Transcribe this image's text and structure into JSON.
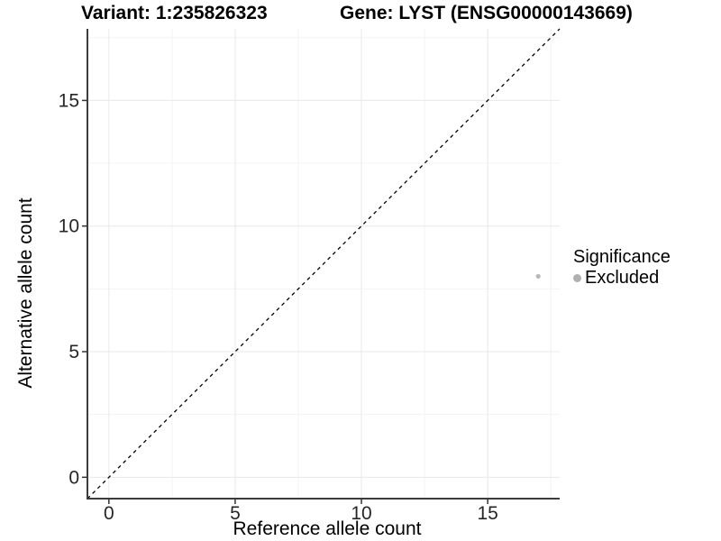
{
  "chart_data": {
    "type": "scatter",
    "title_left": "Variant: 1:235826323",
    "title_right": "Gene: LYST (ENSG00000143669)",
    "xlabel": "Reference allele count",
    "ylabel": "Alternative allele count",
    "xlim": [
      -0.85,
      17.85
    ],
    "ylim": [
      -0.85,
      17.85
    ],
    "x_ticks": [
      0,
      5,
      10,
      15
    ],
    "y_ticks": [
      0,
      5,
      10,
      15
    ],
    "x_minor_ticks": [
      2.5,
      7.5,
      12.5,
      17.5
    ],
    "y_minor_ticks": [
      2.5,
      7.5,
      12.5,
      17.5
    ],
    "grid": true,
    "identity_line": {
      "slope": 1,
      "intercept": 0,
      "style": "dashed",
      "color": "#000000"
    },
    "series": [
      {
        "name": "Excluded",
        "color": "#b4b4b4",
        "points": [
          {
            "x": 17,
            "y": 8
          }
        ]
      }
    ],
    "legend": {
      "title": "Significance",
      "position": "right",
      "entries": [
        {
          "label": "Excluded",
          "color": "#b0b0b0",
          "marker": "circle"
        }
      ]
    },
    "colors": {
      "grid_major": "#e8e8e8",
      "grid_minor": "#f3f3f3",
      "axis_line": "#3c3c3c",
      "tick_mark": "#333333",
      "tick_label": "#262626"
    }
  }
}
